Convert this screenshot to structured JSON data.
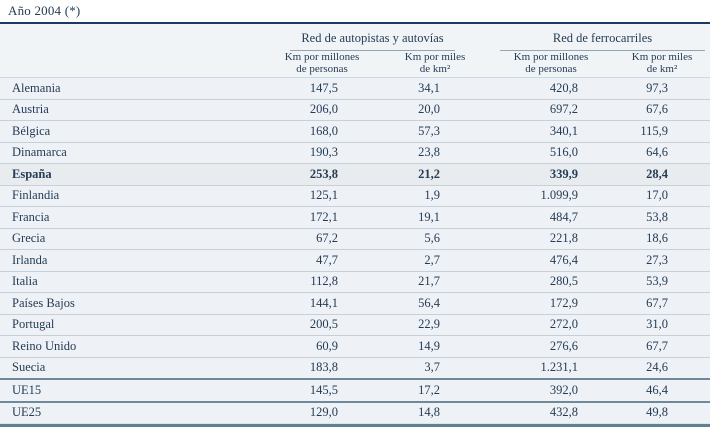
{
  "title": "Año 2004 (*)",
  "table": {
    "groups": [
      {
        "label": "Red de autopistas y autovías"
      },
      {
        "label": "Red de ferrocarriles"
      }
    ],
    "subheaders": {
      "per_person": {
        "line1": "Km por millones",
        "line2": "de personas"
      },
      "per_area": {
        "line1": "Km por miles",
        "line2": "de km²"
      }
    },
    "rows": [
      {
        "country": "Alemania",
        "values": [
          "147,5",
          "34,1",
          "420,8",
          "97,3"
        ]
      },
      {
        "country": "Austria",
        "values": [
          "206,0",
          "20,0",
          "697,2",
          "67,6"
        ]
      },
      {
        "country": "Bélgica",
        "values": [
          "168,0",
          "57,3",
          "340,1",
          "115,9"
        ]
      },
      {
        "country": "Dinamarca",
        "values": [
          "190,3",
          "23,8",
          "516,0",
          "64,6"
        ]
      },
      {
        "country": "España",
        "values": [
          "253,8",
          "21,2",
          "339,9",
          "28,4"
        ],
        "emphasis": true
      },
      {
        "country": "Finlandia",
        "values": [
          "125,1",
          "1,9",
          "1.099,9",
          "17,0"
        ]
      },
      {
        "country": "Francia",
        "values": [
          "172,1",
          "19,1",
          "484,7",
          "53,8"
        ]
      },
      {
        "country": "Grecia",
        "values": [
          "67,2",
          "5,6",
          "221,8",
          "18,6"
        ]
      },
      {
        "country": "Irlanda",
        "values": [
          "47,7",
          "2,7",
          "476,4",
          "27,3"
        ]
      },
      {
        "country": "Italia",
        "values": [
          "112,8",
          "21,7",
          "280,5",
          "53,9"
        ]
      },
      {
        "country": "Países Bajos",
        "values": [
          "144,1",
          "56,4",
          "172,9",
          "67,7"
        ]
      },
      {
        "country": "Portugal",
        "values": [
          "200,5",
          "22,9",
          "272,0",
          "31,0"
        ]
      },
      {
        "country": "Reino Unido",
        "values": [
          "60,9",
          "14,9",
          "276,6",
          "67,7"
        ]
      },
      {
        "country": "Suecia",
        "values": [
          "183,8",
          "3,7",
          "1.231,1",
          "24,6"
        ]
      },
      {
        "country": "UE15",
        "values": [
          "145,5",
          "17,2",
          "392,0",
          "46,4"
        ],
        "divider": true
      },
      {
        "country": "UE25",
        "values": [
          "129,0",
          "14,8",
          "432,8",
          "49,8"
        ],
        "divider": true
      }
    ]
  }
}
